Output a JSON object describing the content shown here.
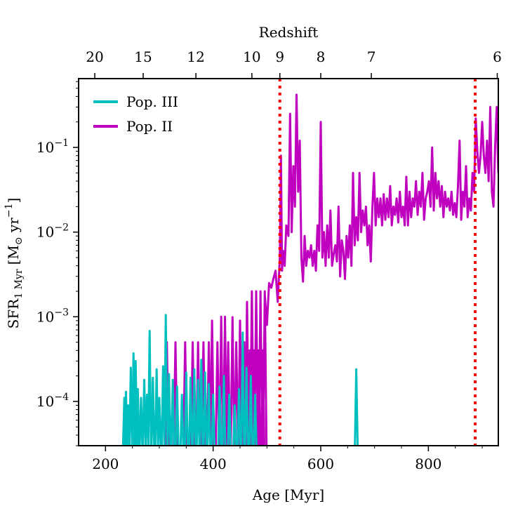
{
  "chart_data": {
    "type": "line",
    "yscale": "log",
    "xlabel": "Age [Myr]",
    "ylabel_main": "SFR",
    "ylabel_sub": "1 Myr",
    "ylabel_units_open": "[M",
    "ylabel_units_sym": "⊙",
    "ylabel_units_mid": " yr",
    "ylabel_units_exp": "−1",
    "ylabel_units_close": "]",
    "top_axis_label": "Redshift",
    "xlim": [
      150,
      930
    ],
    "ylim": [
      3e-05,
      0.65
    ],
    "x_ticks": [
      200,
      400,
      600,
      800
    ],
    "x_tick_labels": [
      "200",
      "400",
      "600",
      "800"
    ],
    "y_ticks": [
      0.0001,
      0.001,
      0.01,
      0.1
    ],
    "y_tick_base": "10",
    "y_tick_exps": [
      "−4",
      "−3",
      "−2",
      "−1"
    ],
    "top_ticks": [
      {
        "age": 180,
        "label": "20"
      },
      {
        "age": 270,
        "label": "15"
      },
      {
        "age": 368,
        "label": "12"
      },
      {
        "age": 472,
        "label": "10"
      },
      {
        "age": 524,
        "label": "9"
      },
      {
        "age": 600,
        "label": "8"
      },
      {
        "age": 694,
        "label": "7"
      },
      {
        "age": 928,
        "label": "6"
      }
    ],
    "vlines": [
      {
        "x": 524,
        "color": "#ff0000",
        "style": "dotted"
      },
      {
        "x": 887,
        "color": "#ff0000",
        "style": "dotted"
      }
    ],
    "series": [
      {
        "name": "Pop. III",
        "color": "#00bfbf",
        "spikes": [
          [
            235,
            0.00011
          ],
          [
            238,
            0.00013
          ],
          [
            242,
            9e-05
          ],
          [
            247,
            0.00025
          ],
          [
            252,
            0.00037
          ],
          [
            256,
            0.0003
          ],
          [
            260,
            0.00014
          ],
          [
            266,
            0.00011
          ],
          [
            272,
            0.00018
          ],
          [
            277,
            0.00012
          ],
          [
            282,
            0.00068
          ],
          [
            288,
            0.00019
          ],
          [
            295,
            0.00024
          ],
          [
            300,
            0.00011
          ],
          [
            307,
            0.00026
          ],
          [
            312,
            0.00105
          ],
          [
            318,
            0.00021
          ],
          [
            325,
            0.00018
          ],
          [
            333,
            0.00015
          ],
          [
            342,
            0.00012
          ],
          [
            350,
            0.00022
          ],
          [
            358,
            0.00019
          ],
          [
            365,
            0.00024
          ],
          [
            372,
            0.00018
          ],
          [
            378,
            0.00031
          ],
          [
            385,
            0.00022
          ],
          [
            392,
            0.00016
          ],
          [
            400,
            0.00012
          ],
          [
            412,
            0.00015
          ],
          [
            420,
            0.0002
          ],
          [
            430,
            0.00012
          ],
          [
            440,
            9e-05
          ],
          [
            448,
            0.00014
          ],
          [
            455,
            0.00065
          ],
          [
            462,
            0.00025
          ],
          [
            470,
            0.0002
          ],
          [
            478,
            0.00012
          ],
          [
            666,
            0.00024
          ]
        ]
      },
      {
        "name": "Pop. II",
        "color": "#bf00bf",
        "spikes": [
          [
            314,
            0.0005
          ],
          [
            330,
            0.0005
          ],
          [
            348,
            0.0005
          ],
          [
            362,
            0.0005
          ],
          [
            372,
            0.0005
          ],
          [
            382,
            0.0005
          ],
          [
            392,
            0.0005
          ],
          [
            398,
            0.0009
          ],
          [
            408,
            0.0005
          ],
          [
            415,
            0.001
          ],
          [
            422,
            0.001
          ],
          [
            428,
            0.0005
          ],
          [
            436,
            0.00099
          ],
          [
            443,
            0.0005
          ],
          [
            450,
            0.0009
          ],
          [
            458,
            0.0005
          ],
          [
            463,
            0.0015
          ],
          [
            468,
            0.0004
          ],
          [
            472,
            0.002
          ],
          [
            476,
            0.0004
          ],
          [
            480,
            0.002
          ],
          [
            484,
            0.0004
          ],
          [
            488,
            0.002
          ],
          [
            492,
            0.0004
          ],
          [
            496,
            0.002
          ]
        ],
        "line": [
          [
            496,
            0.0018
          ],
          [
            500,
            0.0008
          ],
          [
            504,
            0.0025
          ],
          [
            508,
            0.0022
          ],
          [
            512,
            0.0028
          ],
          [
            516,
            0.0035
          ],
          [
            520,
            0.0015
          ],
          [
            524,
            0.005
          ],
          [
            526,
            0.08
          ],
          [
            528,
            0.0035
          ],
          [
            530,
            0.006
          ],
          [
            533,
            0.004
          ],
          [
            536,
            0.012
          ],
          [
            540,
            0.009
          ],
          [
            543,
            0.25
          ],
          [
            546,
            0.01
          ],
          [
            549,
            0.06
          ],
          [
            552,
            0.02
          ],
          [
            555,
            0.42
          ],
          [
            558,
            0.03
          ],
          [
            561,
            0.12
          ],
          [
            564,
            0.005
          ],
          [
            567,
            0.0026
          ],
          [
            570,
            0.009
          ],
          [
            573,
            0.004
          ],
          [
            576,
            0.006
          ],
          [
            579,
            0.005
          ],
          [
            582,
            0.007
          ],
          [
            585,
            0.004
          ],
          [
            588,
            0.006
          ],
          [
            591,
            0.0035
          ],
          [
            594,
            0.012
          ],
          [
            597,
            0.006
          ],
          [
            600,
            0.2
          ],
          [
            603,
            0.005
          ],
          [
            606,
            0.01
          ],
          [
            609,
            0.004
          ],
          [
            612,
            0.012
          ],
          [
            615,
            0.005
          ],
          [
            618,
            0.018
          ],
          [
            621,
            0.004
          ],
          [
            624,
            0.0055
          ],
          [
            627,
            0.007
          ],
          [
            630,
            0.0045
          ],
          [
            633,
            0.02
          ],
          [
            636,
            0.003
          ],
          [
            639,
            0.008
          ],
          [
            642,
            0.006
          ],
          [
            645,
            0.0028
          ],
          [
            648,
            0.009
          ],
          [
            651,
            0.005
          ],
          [
            654,
            0.012
          ],
          [
            657,
            0.004
          ],
          [
            660,
            0.05
          ],
          [
            663,
            0.007
          ],
          [
            666,
            0.015
          ],
          [
            669,
            0.008
          ],
          [
            672,
            0.05
          ],
          [
            675,
            0.01
          ],
          [
            678,
            0.018
          ],
          [
            681,
            0.012
          ],
          [
            684,
            0.02
          ],
          [
            687,
            0.007
          ],
          [
            690,
            0.012
          ],
          [
            693,
            0.0045
          ],
          [
            696,
            0.02
          ],
          [
            699,
            0.05
          ],
          [
            702,
            0.012
          ],
          [
            705,
            0.025
          ],
          [
            708,
            0.015
          ],
          [
            711,
            0.025
          ],
          [
            714,
            0.012
          ],
          [
            717,
            0.028
          ],
          [
            720,
            0.014
          ],
          [
            723,
            0.025
          ],
          [
            726,
            0.015
          ],
          [
            729,
            0.035
          ],
          [
            732,
            0.012
          ],
          [
            735,
            0.02
          ],
          [
            738,
            0.016
          ],
          [
            741,
            0.025
          ],
          [
            744,
            0.013
          ],
          [
            747,
            0.03
          ],
          [
            750,
            0.015
          ],
          [
            753,
            0.02
          ],
          [
            756,
            0.012
          ],
          [
            759,
            0.045
          ],
          [
            762,
            0.012
          ],
          [
            765,
            0.03
          ],
          [
            768,
            0.015
          ],
          [
            771,
            0.025
          ],
          [
            774,
            0.02
          ],
          [
            777,
            0.04
          ],
          [
            780,
            0.016
          ],
          [
            783,
            0.03
          ],
          [
            786,
            0.02
          ],
          [
            789,
            0.05
          ],
          [
            792,
            0.014
          ],
          [
            795,
            0.025
          ],
          [
            798,
            0.03
          ],
          [
            801,
            0.04
          ],
          [
            804,
            0.02
          ],
          [
            807,
            0.1
          ],
          [
            810,
            0.018
          ],
          [
            813,
            0.05
          ],
          [
            816,
            0.025
          ],
          [
            819,
            0.04
          ],
          [
            822,
            0.02
          ],
          [
            825,
            0.035
          ],
          [
            828,
            0.015
          ],
          [
            831,
            0.03
          ],
          [
            834,
            0.02
          ],
          [
            837,
            0.025
          ],
          [
            840,
            0.018
          ],
          [
            843,
            0.03
          ],
          [
            846,
            0.016
          ],
          [
            849,
            0.022
          ],
          [
            852,
            0.015
          ],
          [
            855,
            0.035
          ],
          [
            858,
            0.12
          ],
          [
            861,
            0.014
          ],
          [
            864,
            0.03
          ],
          [
            867,
            0.02
          ],
          [
            870,
            0.06
          ],
          [
            873,
            0.015
          ],
          [
            876,
            0.025
          ],
          [
            879,
            0.018
          ],
          [
            882,
            0.05
          ],
          [
            885,
            0.03
          ],
          [
            888,
            0.22
          ],
          [
            891,
            0.09
          ],
          [
            894,
            0.05
          ],
          [
            897,
            0.08
          ],
          [
            900,
            0.2
          ],
          [
            903,
            0.08
          ],
          [
            906,
            0.05
          ],
          [
            909,
            0.12
          ],
          [
            912,
            0.04
          ],
          [
            915,
            0.3
          ],
          [
            918,
            0.03
          ],
          [
            921,
            0.02
          ],
          [
            924,
            0.1
          ],
          [
            927,
            0.3
          ],
          [
            930,
            0.05
          ]
        ]
      }
    ]
  }
}
